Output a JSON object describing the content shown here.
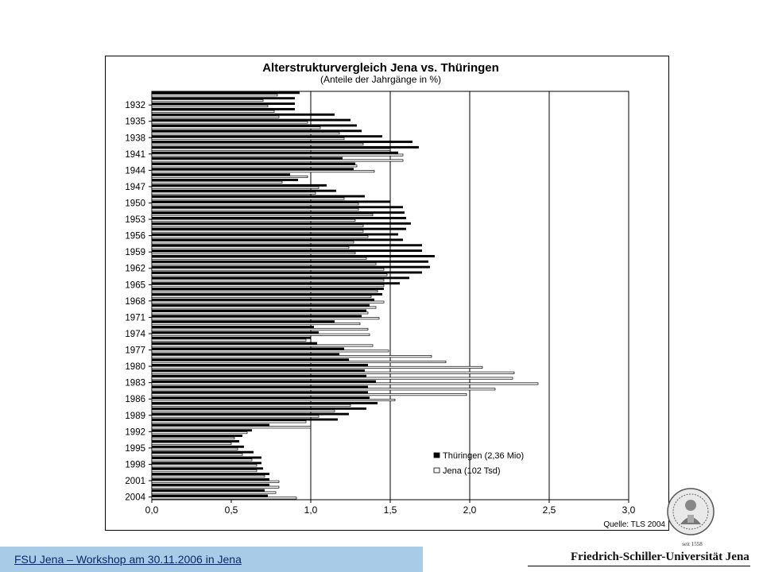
{
  "footer": {
    "text": "FSU Jena – Workshop am 30.11.2006 in Jena"
  },
  "university": {
    "name": "Friedrich-Schiller-Universität Jena",
    "seal_year": "seit 1558"
  },
  "chart_data": {
    "type": "bar",
    "orientation": "horizontal",
    "title": "Alterstrukturvergleich Jena vs. Thüringen",
    "subtitle": "(Anteile der Jahrgänge in %)",
    "source": "Quelle: TLS 2004",
    "xlim": [
      0,
      3.0
    ],
    "xticks": [
      "0,0",
      "0,5",
      "1,0",
      "1,5",
      "2,0",
      "2,5",
      "3,0"
    ],
    "xtick_values": [
      0,
      0.5,
      1.0,
      1.5,
      2.0,
      2.5,
      3.0
    ],
    "gridlines": "vertical at 1,0 / 1,5 / 2,0 / 2,5",
    "legend_position": "bottom-right",
    "categories": [
      1930,
      1931,
      1932,
      1933,
      1934,
      1935,
      1936,
      1937,
      1938,
      1939,
      1940,
      1941,
      1942,
      1943,
      1944,
      1945,
      1946,
      1947,
      1948,
      1949,
      1950,
      1951,
      1952,
      1953,
      1954,
      1955,
      1956,
      1957,
      1958,
      1959,
      1960,
      1961,
      1962,
      1963,
      1964,
      1965,
      1966,
      1967,
      1968,
      1969,
      1970,
      1971,
      1972,
      1973,
      1974,
      1975,
      1976,
      1977,
      1978,
      1979,
      1980,
      1981,
      1982,
      1983,
      1984,
      1985,
      1986,
      1987,
      1988,
      1989,
      1990,
      1991,
      1992,
      1993,
      1994,
      1995,
      1996,
      1997,
      1998,
      1999,
      2000,
      2001,
      2002,
      2003,
      2004
    ],
    "category_labels": [
      "1932",
      "1935",
      "1938",
      "1941",
      "1944",
      "1947",
      "1950",
      "1953",
      "1956",
      "1959",
      "1962",
      "1965",
      "1968",
      "1971",
      "1974",
      "1977",
      "1980",
      "1983",
      "1986",
      "1989",
      "1992",
      "1995",
      "1998",
      "2001",
      "2004"
    ],
    "series": [
      {
        "name": "Thüringen (2,36 Mio)",
        "color": "#000000",
        "values": [
          0.93,
          0.9,
          0.9,
          0.9,
          1.15,
          1.25,
          1.29,
          1.32,
          1.45,
          1.64,
          1.68,
          1.55,
          1.2,
          1.28,
          1.27,
          0.87,
          0.92,
          1.1,
          1.16,
          1.34,
          1.5,
          1.58,
          1.59,
          1.6,
          1.63,
          1.6,
          1.55,
          1.58,
          1.7,
          1.7,
          1.78,
          1.74,
          1.75,
          1.7,
          1.62,
          1.56,
          1.46,
          1.45,
          1.4,
          1.37,
          1.35,
          1.32,
          1.15,
          1.02,
          1.05,
          1.0,
          1.04,
          1.21,
          1.18,
          1.24,
          1.36,
          1.34,
          1.35,
          1.41,
          1.36,
          1.36,
          1.37,
          1.42,
          1.35,
          1.24,
          1.17,
          0.74,
          0.63,
          0.57,
          0.55,
          0.58,
          0.64,
          0.69,
          0.69,
          0.7,
          0.74,
          0.74,
          0.74,
          0.71,
          0.73
        ]
      },
      {
        "name": "Jena (102 Tsd)",
        "color": "#ffffff",
        "values": [
          0.79,
          0.7,
          0.73,
          0.77,
          0.8,
          0.98,
          1.06,
          1.18,
          1.21,
          1.33,
          1.5,
          1.58,
          1.58,
          1.29,
          1.4,
          0.98,
          0.82,
          1.05,
          1.03,
          1.21,
          1.3,
          1.3,
          1.39,
          1.28,
          1.33,
          1.33,
          1.36,
          1.27,
          1.24,
          1.28,
          1.35,
          1.41,
          1.46,
          1.48,
          1.46,
          1.46,
          1.42,
          1.38,
          1.46,
          1.41,
          1.36,
          1.43,
          1.31,
          1.36,
          1.37,
          0.97,
          1.39,
          1.49,
          1.76,
          1.85,
          2.08,
          2.28,
          2.27,
          2.43,
          2.16,
          1.98,
          1.53,
          1.25,
          1.15,
          1.05,
          0.97,
          1.0,
          0.6,
          0.52,
          0.5,
          0.54,
          0.57,
          0.63,
          0.66,
          0.66,
          0.71,
          0.8,
          0.8,
          0.78,
          0.91
        ]
      }
    ]
  }
}
